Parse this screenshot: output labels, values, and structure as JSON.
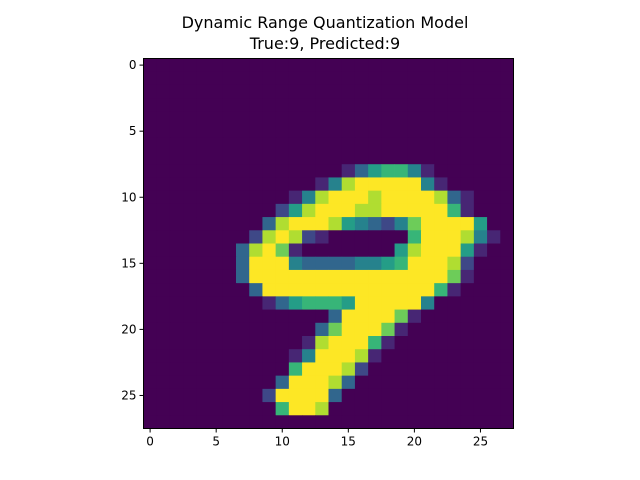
{
  "chart_data": {
    "type": "heatmap",
    "title": "Dynamic Range Quantization Model",
    "subtitle": "True:9, Predicted:9",
    "xlabel": "",
    "ylabel": "",
    "rows": 28,
    "cols": 28,
    "xlim": [
      -0.5,
      27.5
    ],
    "ylim": [
      27.5,
      -0.5
    ],
    "x_ticks": [
      0,
      5,
      10,
      15,
      20,
      25
    ],
    "y_ticks": [
      0,
      5,
      10,
      15,
      20,
      25
    ],
    "x_tick_labels": [
      "0",
      "5",
      "10",
      "15",
      "20",
      "25"
    ],
    "y_tick_labels": [
      "0",
      "5",
      "10",
      "15",
      "20",
      "25"
    ],
    "colormap": "viridis",
    "value_range": [
      0,
      255
    ],
    "grid": false,
    "legend": "none",
    "values_encoding": "one string per row, one character per pixel: 0-9 = intensity deciles (0 = 0, 9 = 255)",
    "values": [
      "0000000000000000000000000000",
      "0000000000000000000000000000",
      "0000000000000000000000000000",
      "0000000000000000000000000000",
      "0000000000000000000000000000",
      "0000000000000000000000000000",
      "0000000000000000000000000000",
      "0000000000000000000000000000",
      "0000000000000001356641000000",
      "0000000000000148999994100000",
      "0000000000014899989999831000",
      "0000000000258999889999961000",
      "0000000003899985432479999500",
      "0000000028982100000069998410",
      "0000000389710000000589995100",
      "0000000399943333445699982000",
      "0000000399999999999999971000",
      "0000000039999999999999610000",
      "0000000001356665999994000000",
      "0000000000000039999710000000",
      "0000000000000379997100000000",
      "0000000000001899961000000000",
      "0000000000014999810000000000",
      "0000000000069998200000000000",
      "0000000000399983000000000000",
      "0000000002999930000000000000",
      "0000000000699800000000000000",
      "0000000000000000000000000000"
    ]
  }
}
